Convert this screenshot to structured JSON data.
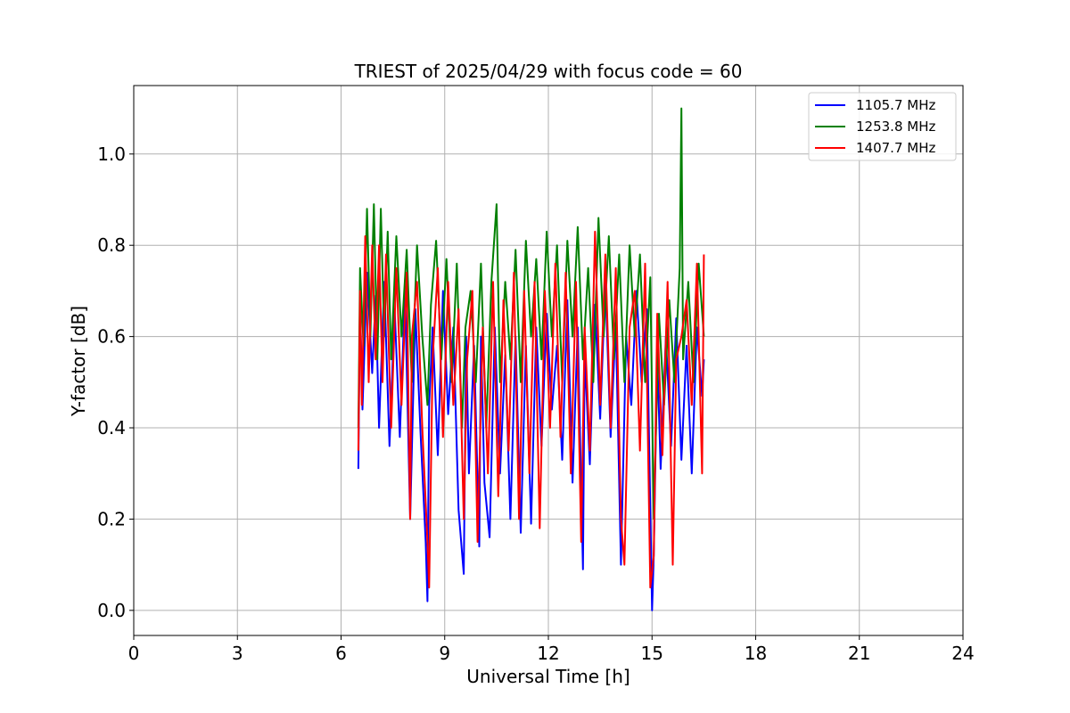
{
  "chart_data": {
    "type": "line",
    "title": "TRIEST of 2025/04/29 with focus code = 60",
    "xlabel": "Universal Time [h]",
    "ylabel": "Y-factor [dB]",
    "xlim": [
      0,
      24
    ],
    "ylim": [
      -0.055,
      1.15
    ],
    "xticks": [
      0,
      3,
      6,
      9,
      12,
      15,
      18,
      21,
      24
    ],
    "xtick_labels": [
      "0",
      "3",
      "6",
      "9",
      "12",
      "15",
      "18",
      "21",
      "24"
    ],
    "yticks": [
      0.0,
      0.2,
      0.4,
      0.6,
      0.8,
      1.0
    ],
    "ytick_labels": [
      "0.0",
      "0.2",
      "0.4",
      "0.6",
      "0.8",
      "1.0"
    ],
    "grid": true,
    "legend_position": "top-right",
    "series": [
      {
        "name": "1105.7 MHz",
        "color": "#0000ff",
        "x": [
          6.5,
          6.55,
          6.62,
          6.75,
          6.9,
          7.0,
          7.1,
          7.25,
          7.4,
          7.55,
          7.7,
          7.85,
          8.0,
          8.15,
          8.3,
          8.45,
          8.5,
          8.55,
          8.65,
          8.8,
          8.95,
          9.1,
          9.25,
          9.4,
          9.55,
          9.62,
          9.7,
          9.85,
          10.0,
          10.05,
          10.15,
          10.3,
          10.45,
          10.6,
          10.75,
          10.9,
          11.05,
          11.2,
          11.35,
          11.5,
          11.65,
          11.8,
          11.95,
          12.1,
          12.25,
          12.4,
          12.55,
          12.7,
          12.85,
          13.0,
          13.05,
          13.2,
          13.35,
          13.5,
          13.65,
          13.8,
          13.95,
          14.1,
          14.25,
          14.4,
          14.55,
          14.7,
          14.85,
          15.0,
          15.05,
          15.15,
          15.25,
          15.4,
          15.55,
          15.7,
          15.85,
          16.0,
          16.15,
          16.3,
          16.45,
          16.5
        ],
        "y": [
          0.31,
          0.68,
          0.44,
          0.74,
          0.52,
          0.69,
          0.4,
          0.72,
          0.36,
          0.66,
          0.38,
          0.7,
          0.2,
          0.66,
          0.39,
          0.15,
          0.02,
          0.45,
          0.62,
          0.34,
          0.7,
          0.43,
          0.62,
          0.22,
          0.08,
          0.6,
          0.3,
          0.58,
          0.14,
          0.6,
          0.28,
          0.16,
          0.62,
          0.3,
          0.56,
          0.2,
          0.6,
          0.17,
          0.58,
          0.19,
          0.62,
          0.36,
          0.65,
          0.44,
          0.58,
          0.33,
          0.68,
          0.28,
          0.62,
          0.09,
          0.56,
          0.32,
          0.67,
          0.42,
          0.72,
          0.38,
          0.63,
          0.1,
          0.6,
          0.45,
          0.7,
          0.5,
          0.66,
          0.0,
          0.12,
          0.56,
          0.31,
          0.6,
          0.36,
          0.64,
          0.33,
          0.58,
          0.3,
          0.62,
          0.47,
          0.55
        ]
      },
      {
        "name": "1253.8 MHz",
        "color": "#008000",
        "x": [
          6.5,
          6.55,
          6.65,
          6.75,
          6.85,
          6.95,
          7.05,
          7.15,
          7.25,
          7.35,
          7.45,
          7.6,
          7.75,
          7.9,
          8.05,
          8.2,
          8.35,
          8.5,
          8.6,
          8.75,
          8.9,
          9.05,
          9.2,
          9.35,
          9.5,
          9.6,
          9.75,
          9.9,
          10.05,
          10.2,
          10.35,
          10.5,
          10.6,
          10.75,
          10.9,
          11.05,
          11.2,
          11.35,
          11.5,
          11.65,
          11.8,
          11.95,
          12.1,
          12.25,
          12.4,
          12.55,
          12.7,
          12.85,
          13.0,
          13.15,
          13.3,
          13.45,
          13.6,
          13.75,
          13.9,
          14.05,
          14.2,
          14.35,
          14.5,
          14.65,
          14.8,
          14.95,
          15.05,
          15.2,
          15.35,
          15.5,
          15.65,
          15.8,
          15.85,
          15.9,
          16.05,
          16.2,
          16.35,
          16.5
        ],
        "y": [
          0.4,
          0.75,
          0.58,
          0.88,
          0.6,
          0.89,
          0.55,
          0.88,
          0.6,
          0.83,
          0.55,
          0.82,
          0.6,
          0.79,
          0.5,
          0.8,
          0.6,
          0.45,
          0.67,
          0.81,
          0.55,
          0.77,
          0.5,
          0.76,
          0.4,
          0.62,
          0.7,
          0.5,
          0.76,
          0.4,
          0.72,
          0.89,
          0.5,
          0.72,
          0.55,
          0.79,
          0.5,
          0.81,
          0.6,
          0.77,
          0.55,
          0.83,
          0.6,
          0.8,
          0.5,
          0.81,
          0.6,
          0.84,
          0.55,
          0.75,
          0.5,
          0.86,
          0.6,
          0.82,
          0.55,
          0.78,
          0.5,
          0.8,
          0.6,
          0.78,
          0.5,
          0.73,
          0.2,
          0.65,
          0.45,
          0.68,
          0.5,
          0.75,
          1.1,
          0.55,
          0.72,
          0.5,
          0.76,
          0.6
        ]
      },
      {
        "name": "1407.7 MHz",
        "color": "#ff0000",
        "x": [
          6.5,
          6.55,
          6.6,
          6.7,
          6.8,
          6.9,
          7.0,
          7.1,
          7.2,
          7.3,
          7.45,
          7.6,
          7.75,
          7.9,
          8.0,
          8.05,
          8.2,
          8.35,
          8.5,
          8.55,
          8.65,
          8.8,
          8.95,
          9.1,
          9.25,
          9.4,
          9.55,
          9.65,
          9.8,
          9.95,
          10.1,
          10.25,
          10.4,
          10.55,
          10.7,
          10.85,
          11.0,
          11.15,
          11.3,
          11.45,
          11.6,
          11.75,
          11.9,
          12.05,
          12.2,
          12.35,
          12.5,
          12.65,
          12.8,
          12.95,
          13.05,
          13.2,
          13.35,
          13.5,
          13.65,
          13.8,
          13.95,
          14.1,
          14.2,
          14.35,
          14.5,
          14.65,
          14.8,
          14.95,
          15.05,
          15.15,
          15.3,
          15.45,
          15.6,
          15.7,
          15.85,
          16.0,
          16.15,
          16.3,
          16.45,
          16.5
        ],
        "y": [
          0.35,
          0.7,
          0.45,
          0.82,
          0.5,
          0.8,
          0.55,
          0.8,
          0.5,
          0.78,
          0.4,
          0.75,
          0.45,
          0.74,
          0.2,
          0.6,
          0.72,
          0.4,
          0.15,
          0.05,
          0.55,
          0.75,
          0.38,
          0.72,
          0.45,
          0.66,
          0.2,
          0.55,
          0.7,
          0.15,
          0.62,
          0.3,
          0.72,
          0.25,
          0.68,
          0.35,
          0.74,
          0.2,
          0.7,
          0.3,
          0.72,
          0.18,
          0.7,
          0.4,
          0.76,
          0.38,
          0.74,
          0.3,
          0.72,
          0.15,
          0.62,
          0.35,
          0.83,
          0.45,
          0.78,
          0.4,
          0.75,
          0.2,
          0.1,
          0.62,
          0.7,
          0.35,
          0.76,
          0.05,
          0.12,
          0.65,
          0.34,
          0.72,
          0.1,
          0.55,
          0.6,
          0.68,
          0.45,
          0.76,
          0.3,
          0.78
        ]
      }
    ]
  }
}
